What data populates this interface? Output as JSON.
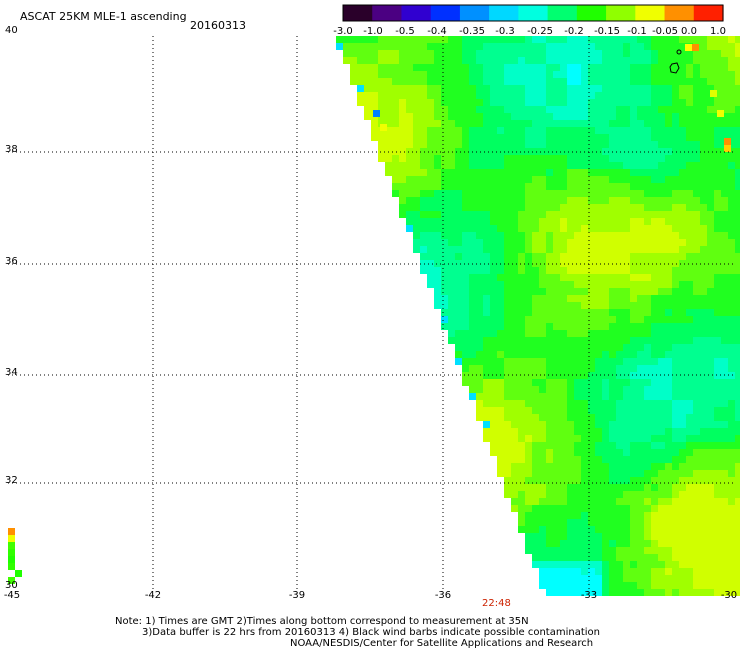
{
  "header": {
    "title": "ASCAT 25KM MLE-1 ascending",
    "date": "20160313"
  },
  "colorbar": {
    "labels": [
      "-3.0",
      "-1.0",
      "-0.5",
      "-0.4",
      "-0.35",
      "-0.3",
      "-0.25",
      "-0.2",
      "-0.15",
      "-0.1",
      "-0.05",
      "0.0",
      "1.0"
    ],
    "colors": [
      "#2a002a",
      "#4b0082",
      "#3000d0",
      "#0030ff",
      "#0090ff",
      "#00d8ff",
      "#00ffe0",
      "#00ff70",
      "#20ff00",
      "#90ff00",
      "#f0ff00",
      "#ff9000",
      "#ff2000"
    ]
  },
  "map": {
    "lat_labels": [
      "40",
      "38",
      "36",
      "34",
      "32",
      "30"
    ],
    "lon_labels": [
      "-45",
      "-42",
      "-39",
      "-36",
      "-33",
      "-30"
    ],
    "time_label": "22:48"
  },
  "notes": {
    "line1": "Note: 1) Times are GMT 2)Times along bottom correspond to measurement at 35N",
    "line2": "3)Data buffer is 22 hrs from 20160313 4) Black wind barbs indicate possible contamination",
    "line3": "NOAA/NESDIS/Center for Satellite Applications and Research"
  }
}
